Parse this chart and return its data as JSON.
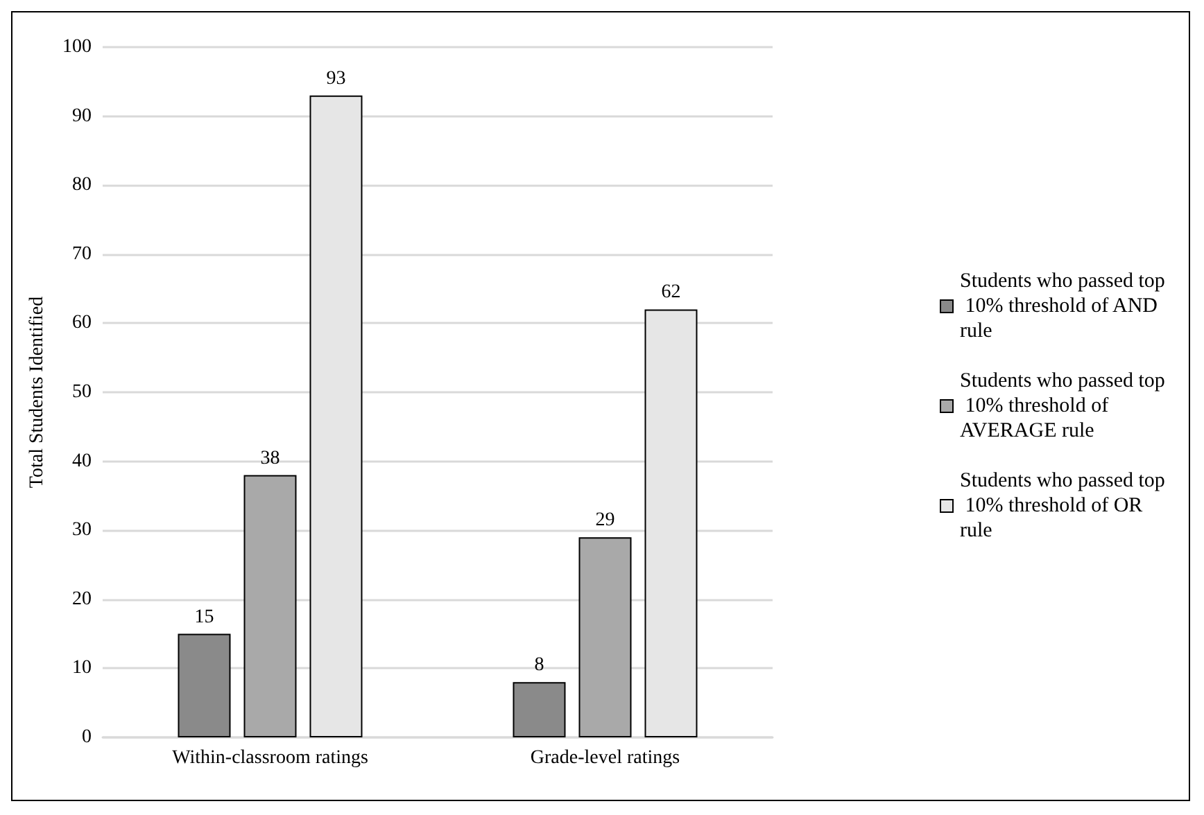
{
  "chart_data": {
    "type": "bar",
    "ylabel": "Total Students Identified",
    "categories": [
      "Within-classroom ratings",
      "Grade-level ratings"
    ],
    "series": [
      {
        "name": "Students who passed top 10% threshold of AND rule",
        "color": "#8a8a8a",
        "values": [
          15,
          8
        ]
      },
      {
        "name": "Students who passed top 10% threshold of AVERAGE rule",
        "color": "#a9a9a9",
        "values": [
          38,
          29
        ]
      },
      {
        "name": "Students who passed top 10% threshold of OR rule",
        "color": "#e6e6e6",
        "values": [
          93,
          62
        ]
      }
    ],
    "ylim": [
      0,
      100
    ],
    "yticks": [
      0,
      10,
      20,
      30,
      40,
      50,
      60,
      70,
      80,
      90,
      100
    ],
    "grid": "y",
    "legend": "right",
    "data_labels": true
  }
}
